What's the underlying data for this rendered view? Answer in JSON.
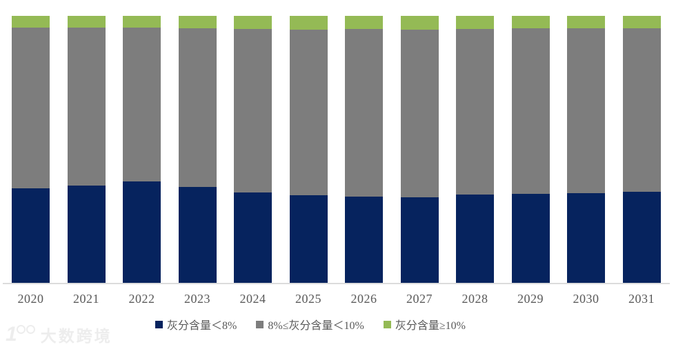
{
  "chart_data": {
    "type": "bar",
    "stacked": true,
    "stack_mode": "percent",
    "title": "",
    "xlabel": "",
    "ylabel": "",
    "ylim": [
      0,
      100
    ],
    "grid": false,
    "legend_position": "bottom",
    "categories": [
      "2020",
      "2021",
      "2022",
      "2023",
      "2024",
      "2025",
      "2026",
      "2027",
      "2028",
      "2029",
      "2030",
      "2031"
    ],
    "series": [
      {
        "name": "灰分含量＜8%",
        "color": "#06235E",
        "values": [
          35.3,
          36.3,
          37.9,
          35.8,
          33.8,
          32.7,
          32.2,
          32.0,
          33.0,
          33.2,
          33.5,
          34.0
        ]
      },
      {
        "name": "8%≤灰分含量＜10%",
        "color": "#7D7D7D",
        "values": [
          60.1,
          59.1,
          57.7,
          59.3,
          61.2,
          62.0,
          62.7,
          62.8,
          62.0,
          61.9,
          61.6,
          61.2
        ]
      },
      {
        "name": "灰分含量≥10%",
        "color": "#94BA55",
        "values": [
          4.6,
          4.6,
          4.4,
          4.9,
          5.0,
          5.3,
          5.1,
          5.2,
          5.0,
          4.9,
          4.9,
          4.8
        ]
      }
    ]
  },
  "colors": {
    "axis_line": "#DCDCDC",
    "tick_label": "#595959",
    "legend_text": "#595959",
    "watermark": "#EDEDED"
  },
  "watermark": {
    "logo_text": "1",
    "text": "大数跨境"
  }
}
